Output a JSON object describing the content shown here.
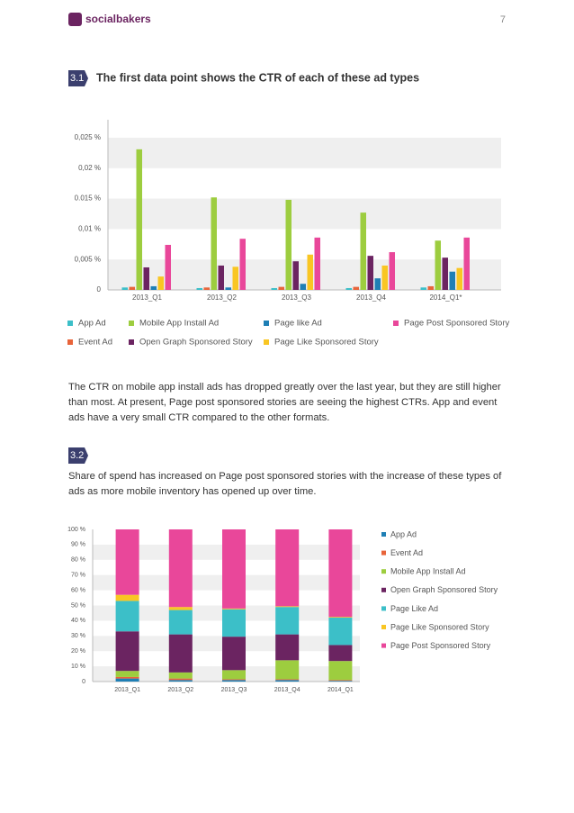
{
  "header": {
    "logo": "socialbakers",
    "page_number": "7"
  },
  "sections": [
    {
      "number": "3.1",
      "title": "The first data point shows the CTR of each of these ad types",
      "paragraph": "The CTR on mobile app install ads has dropped greatly over the last year, but they are still higher than most. At present, Page post sponsored stories are seeing the highest CTRs. App and event ads have a very small CTR compared to the other formats."
    },
    {
      "number": "3.2",
      "paragraph": "Share of spend has increased on Page post sponsored stories with the increase of these types of ads as more mobile inventory has opened up over time."
    }
  ],
  "chart_data": [
    {
      "type": "bar",
      "categories": [
        "2013_Q1",
        "2013_Q2",
        "2013_Q3",
        "2013_Q4",
        "2014_Q1*"
      ],
      "series": [
        {
          "name": "App Ad",
          "color": "#3cbfc8",
          "values": [
            0.0004,
            0.0003,
            0.0003,
            0.0003,
            0.0004
          ]
        },
        {
          "name": "Event Ad",
          "color": "#e8643a",
          "values": [
            0.0005,
            0.0004,
            0.0005,
            0.0005,
            0.0006
          ]
        },
        {
          "name": "Mobile App Install Ad",
          "color": "#9dcd3f",
          "values": [
            0.0231,
            0.0152,
            0.0148,
            0.0127,
            0.0081
          ]
        },
        {
          "name": "Open Graph Sponsored Story",
          "color": "#6b2461",
          "values": [
            0.0037,
            0.004,
            0.0047,
            0.0056,
            0.0053
          ]
        },
        {
          "name": "Page like Ad",
          "color": "#1f7fb5",
          "values": [
            0.0006,
            0.0004,
            0.001,
            0.0019,
            0.003
          ]
        },
        {
          "name": "Page Like Sponsored Story",
          "color": "#f9c623",
          "values": [
            0.0022,
            0.0038,
            0.0058,
            0.004,
            0.0036
          ]
        },
        {
          "name": "Page Post Sponsored Story",
          "color": "#e9479a",
          "values": [
            0.0074,
            0.0084,
            0.0086,
            0.0062,
            0.0086
          ]
        }
      ],
      "ylim": [
        0,
        0.025
      ],
      "yticks": [
        0,
        {
          "value": 0.005,
          "label": "0,005 %"
        },
        {
          "value": 0.01,
          "label": "0,01 %"
        },
        {
          "value": 0.015,
          "label": "0.015 %"
        },
        {
          "value": 0.02,
          "label": "0,02 %"
        },
        {
          "value": 0.025,
          "label": "0,025 %"
        }
      ],
      "grid": true
    },
    {
      "type": "stacked_bar",
      "categories": [
        "2013_Q1",
        "2013_Q2",
        "2013_Q3",
        "2013_Q4",
        "2014_Q1"
      ],
      "series": [
        {
          "name": "App Ad",
          "color": "#1f7fb5",
          "values": [
            2,
            1,
            1,
            1,
            0.5
          ]
        },
        {
          "name": "Event Ad",
          "color": "#e8643a",
          "values": [
            1,
            1,
            0.5,
            0.5,
            0.5
          ]
        },
        {
          "name": "Mobile App Install Ad",
          "color": "#9dcd3f",
          "values": [
            4,
            4,
            6,
            12.5,
            12.5
          ]
        },
        {
          "name": "Open Graph Sponsored Story",
          "color": "#6b2461",
          "values": [
            26,
            25,
            22,
            17,
            10.5
          ]
        },
        {
          "name": "Page Like Ad",
          "color": "#3cbfc8",
          "values": [
            20,
            16,
            18,
            18,
            18
          ]
        },
        {
          "name": "Page Like Sponsored Story",
          "color": "#f9c623",
          "values": [
            4,
            2,
            0.5,
            0.5,
            0.5
          ]
        },
        {
          "name": "Page Post Sponsored Story",
          "color": "#e9479a",
          "values": [
            43,
            51,
            52,
            50.5,
            57.5
          ]
        }
      ],
      "ylim": [
        0,
        100
      ],
      "yticks": [
        0,
        {
          "value": 10,
          "label": "10 %"
        },
        {
          "value": 20,
          "label": "20 %"
        },
        {
          "value": 30,
          "label": "30 %"
        },
        {
          "value": 40,
          "label": "40 %"
        },
        {
          "value": 50,
          "label": "50 %"
        },
        {
          "value": 60,
          "label": "60 %"
        },
        {
          "value": 70,
          "label": "70 %"
        },
        {
          "value": 80,
          "label": "80 %"
        },
        {
          "value": 90,
          "label": "90 %"
        },
        {
          "value": 100,
          "label": "100 %"
        }
      ],
      "grid": true
    }
  ]
}
